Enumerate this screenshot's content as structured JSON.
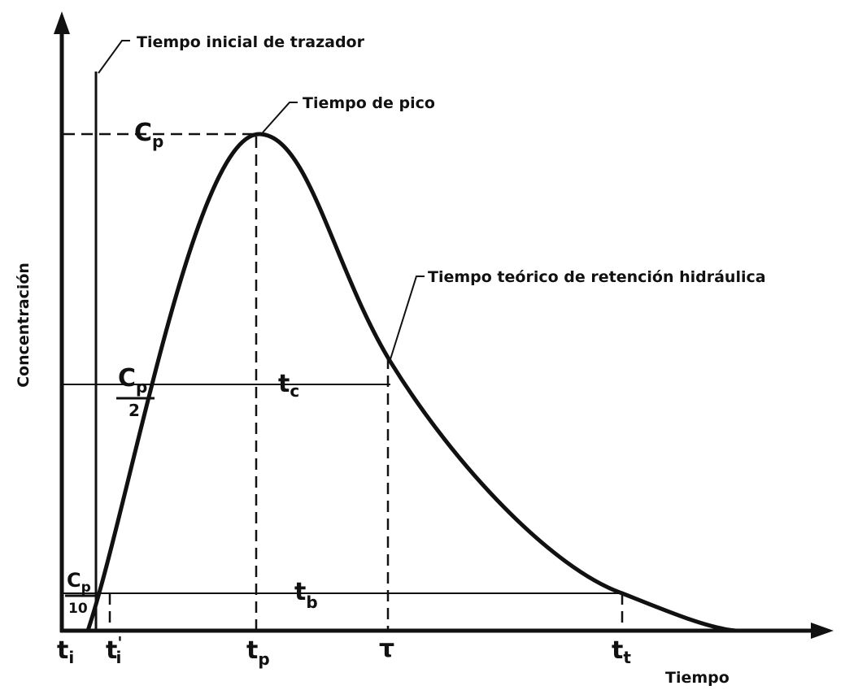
{
  "callouts": [
    "Tiempo inicial de trazador",
    "Tiempo de pico",
    "Tiempo teórico de retención hidráulica"
  ],
  "axes": {
    "y_title": "Concentración",
    "x_title": "Tiempo"
  },
  "y_labels": {
    "peak": {
      "main": "C",
      "sub": "p"
    },
    "half": {
      "main": "C",
      "sub": "p",
      "den": "2"
    },
    "tenth": {
      "main": "C",
      "sub": "p",
      "den": "10"
    }
  },
  "x_labels": {
    "ti": {
      "main": "t",
      "sub": "i"
    },
    "ti_prime": {
      "main": "t",
      "prime": "'",
      "sub": "i"
    },
    "tp": {
      "main": "t",
      "sub": "p"
    },
    "tau": {
      "main": "τ"
    },
    "tt": {
      "main": "t",
      "sub": "t"
    }
  },
  "inner_labels": {
    "tc": {
      "main": "t",
      "sub": "c"
    },
    "tb": {
      "main": "t",
      "sub": "b"
    }
  }
}
